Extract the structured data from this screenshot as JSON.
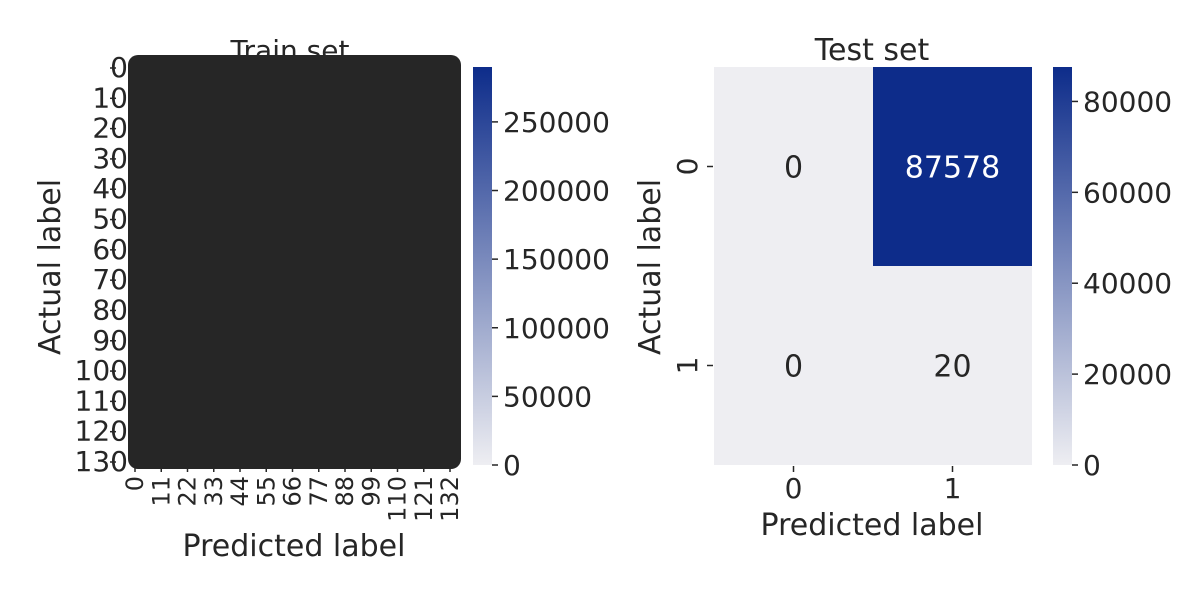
{
  "chart_data": [
    {
      "type": "heatmap",
      "title": "Train set",
      "xlabel": "Predicted label",
      "ylabel": "Actual label",
      "x_tick_labels": [
        "0",
        "11",
        "22",
        "33",
        "44",
        "55",
        "66",
        "77",
        "88",
        "99",
        "110",
        "121",
        "132"
      ],
      "y_tick_labels": [
        "0",
        "10",
        "20",
        "30",
        "40",
        "50",
        "60",
        "70",
        "80",
        "90",
        "100",
        "110",
        "120",
        "130"
      ],
      "colorbar": {
        "min": 0,
        "max": 290000,
        "ticks": [
          0,
          50000,
          100000,
          150000,
          200000,
          250000
        ]
      },
      "note": "cell annotations overlap and are illegible"
    },
    {
      "type": "heatmap",
      "title": "Test set",
      "xlabel": "Predicted label",
      "ylabel": "Actual label",
      "x_categories": [
        "0",
        "1"
      ],
      "y_categories": [
        "0",
        "1"
      ],
      "matrix": [
        [
          0,
          87578
        ],
        [
          0,
          20
        ]
      ],
      "colorbar": {
        "min": 0,
        "max": 87578,
        "ticks": [
          0,
          20000,
          40000,
          60000,
          80000
        ]
      }
    }
  ],
  "colors": {
    "low": "#eeeef2",
    "high": "#0d2c8a",
    "annotation_dark": "#262626",
    "annotation_light": "#ffffff"
  }
}
